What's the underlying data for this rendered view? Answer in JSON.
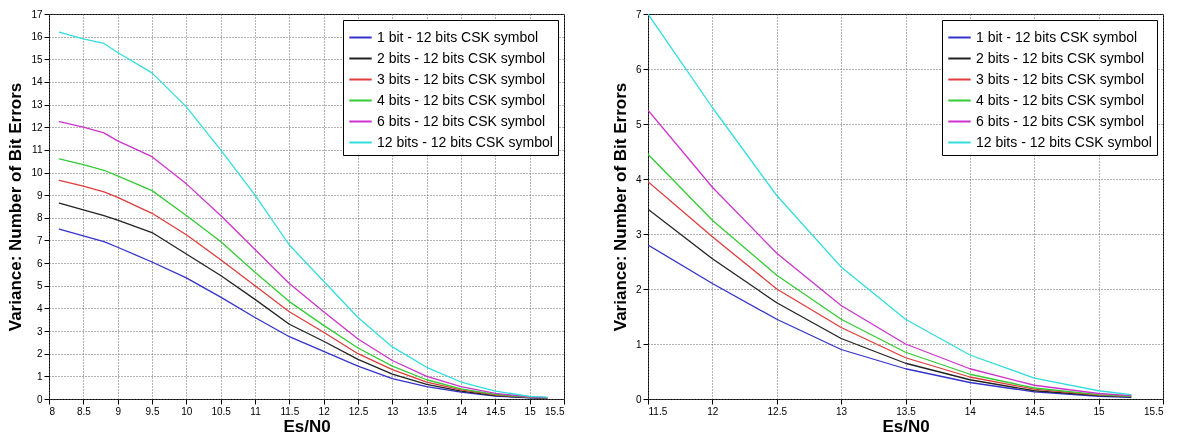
{
  "chart_data": [
    {
      "type": "line",
      "xlabel": "Es/N0",
      "ylabel": "Variance: Number of Bit Errors",
      "x": [
        8.15,
        8.5,
        8.8,
        9,
        9.5,
        10,
        10.5,
        11,
        11.5,
        12,
        12.5,
        13,
        13.5,
        14,
        14.5,
        15,
        15.25
      ],
      "xlim": [
        8,
        15.5
      ],
      "xticks": [
        8,
        8.5,
        9,
        9.5,
        10,
        10.5,
        11,
        11.5,
        12,
        12.5,
        13,
        13.5,
        14,
        14.5,
        15,
        15.5
      ],
      "ylim": [
        0,
        17
      ],
      "yticks": [
        0,
        1,
        2,
        3,
        4,
        5,
        6,
        7,
        8,
        9,
        10,
        11,
        12,
        13,
        14,
        15,
        16,
        17
      ],
      "grid": true,
      "legend": "top right",
      "line_style": "solid",
      "series": [
        {
          "name": "1 bit - 12 bits CSK symbol",
          "color": "#3333cc",
          "values": [
            7.5,
            7.2,
            6.95,
            6.7,
            6.05,
            5.35,
            4.5,
            3.6,
            2.75,
            2.1,
            1.45,
            0.9,
            0.55,
            0.3,
            0.13,
            0.05,
            0.03
          ]
        },
        {
          "name": "2 bits - 12 bits CSK symbol",
          "color": "#222222",
          "values": [
            8.65,
            8.35,
            8.1,
            7.9,
            7.35,
            6.4,
            5.45,
            4.4,
            3.3,
            2.55,
            1.75,
            1.1,
            0.65,
            0.35,
            0.15,
            0.06,
            0.04
          ]
        },
        {
          "name": "3 bits - 12 bits CSK symbol",
          "color": "#e03c3c",
          "values": [
            9.65,
            9.4,
            9.15,
            8.9,
            8.2,
            7.25,
            6.15,
            5.0,
            3.85,
            2.95,
            2.0,
            1.3,
            0.75,
            0.4,
            0.18,
            0.07,
            0.05
          ]
        },
        {
          "name": "4 bits - 12 bits CSK symbol",
          "color": "#33cc33",
          "values": [
            10.6,
            10.35,
            10.1,
            9.85,
            9.2,
            8.1,
            6.95,
            5.6,
            4.3,
            3.25,
            2.25,
            1.45,
            0.85,
            0.45,
            0.2,
            0.08,
            0.05
          ]
        },
        {
          "name": "6 bits - 12 bits CSK symbol",
          "color": "#cc33cc",
          "values": [
            12.25,
            12.0,
            11.75,
            11.4,
            10.7,
            9.5,
            8.1,
            6.6,
            5.1,
            3.85,
            2.65,
            1.7,
            1.0,
            0.55,
            0.25,
            0.1,
            0.06
          ]
        },
        {
          "name": "12 bits - 12 bits CSK symbol",
          "color": "#33dddd",
          "values": [
            16.2,
            15.9,
            15.7,
            15.3,
            14.4,
            12.9,
            11.0,
            9.0,
            6.8,
            5.2,
            3.6,
            2.3,
            1.4,
            0.75,
            0.35,
            0.12,
            0.08
          ]
        }
      ]
    },
    {
      "type": "line",
      "xlabel": "Es/N0",
      "ylabel": "Variance: Number of Bit Errors",
      "x": [
        11.5,
        12,
        12.5,
        13,
        13.5,
        14,
        14.5,
        15,
        15.25
      ],
      "xlim": [
        11.5,
        15.5
      ],
      "xticks": [
        11.5,
        12,
        12.5,
        13,
        13.5,
        14,
        14.5,
        15,
        15.5
      ],
      "ylim": [
        0,
        7
      ],
      "yticks": [
        0,
        1,
        2,
        3,
        4,
        5,
        6,
        7
      ],
      "grid": true,
      "legend": "top right",
      "line_style": "solid",
      "series": [
        {
          "name": "1 bit - 12 bits CSK symbol",
          "color": "#3333cc",
          "values": [
            2.8,
            2.1,
            1.45,
            0.9,
            0.55,
            0.3,
            0.13,
            0.05,
            0.03
          ]
        },
        {
          "name": "2 bits - 12 bits CSK symbol",
          "color": "#222222",
          "values": [
            3.45,
            2.55,
            1.75,
            1.1,
            0.65,
            0.35,
            0.15,
            0.06,
            0.04
          ]
        },
        {
          "name": "3 bits - 12 bits CSK symbol",
          "color": "#e03c3c",
          "values": [
            3.95,
            2.95,
            2.0,
            1.3,
            0.75,
            0.4,
            0.18,
            0.07,
            0.05
          ]
        },
        {
          "name": "4 bits - 12 bits CSK symbol",
          "color": "#33cc33",
          "values": [
            4.45,
            3.25,
            2.25,
            1.45,
            0.85,
            0.45,
            0.2,
            0.08,
            0.05
          ]
        },
        {
          "name": "6 bits - 12 bits CSK symbol",
          "color": "#cc33cc",
          "values": [
            5.25,
            3.85,
            2.65,
            1.7,
            1.0,
            0.55,
            0.25,
            0.1,
            0.06
          ]
        },
        {
          "name": "12 bits - 12 bits CSK symbol",
          "color": "#33dddd",
          "values": [
            7.0,
            5.3,
            3.7,
            2.4,
            1.45,
            0.8,
            0.38,
            0.15,
            0.08
          ]
        }
      ]
    }
  ]
}
